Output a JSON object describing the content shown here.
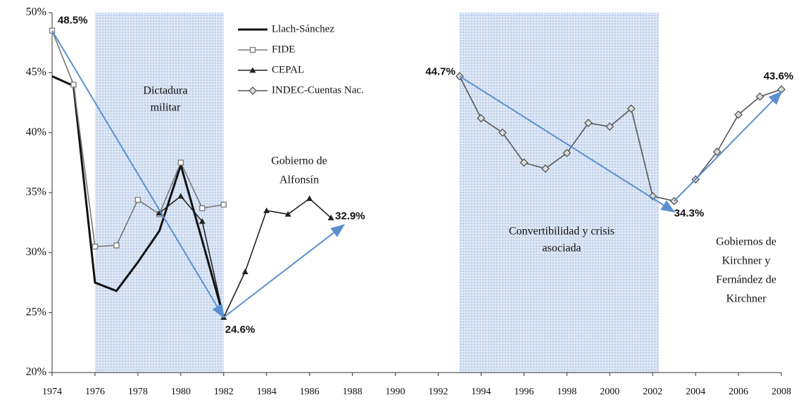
{
  "chart_data": {
    "type": "line",
    "xlim": [
      1974,
      2008
    ],
    "ylim": [
      20,
      50
    ],
    "xticks": [
      1974,
      1976,
      1978,
      1980,
      1982,
      1984,
      1986,
      1988,
      1990,
      1992,
      1994,
      1996,
      1998,
      2000,
      2002,
      2004,
      2006,
      2008
    ],
    "yticks": [
      {
        "value": 20,
        "label": "20%"
      },
      {
        "value": 25,
        "label": "25%"
      },
      {
        "value": 30,
        "label": "30%"
      },
      {
        "value": 35,
        "label": "35%"
      },
      {
        "value": 40,
        "label": "40%"
      },
      {
        "value": 45,
        "label": "45%"
      },
      {
        "value": 50,
        "label": "50%"
      }
    ],
    "series": [
      {
        "name": "Llach-Sánchez",
        "color": "#111111",
        "marker": "none",
        "x": [
          1974,
          1975,
          1976,
          1977,
          1978,
          1979,
          1980,
          1981,
          1982
        ],
        "values": [
          44.7,
          43.9,
          27.5,
          26.8,
          29.2,
          31.8,
          37.3,
          31.0,
          24.6
        ]
      },
      {
        "name": "FIDE",
        "color": "#777777",
        "marker": "square",
        "x": [
          1974,
          1975,
          1976,
          1977,
          1978,
          1979,
          1980,
          1981,
          1982
        ],
        "values": [
          48.5,
          44.0,
          30.5,
          30.6,
          34.4,
          33.2,
          37.5,
          33.7,
          34.0
        ]
      },
      {
        "name": "CEPAL",
        "color": "#222222",
        "marker": "triangle",
        "x": [
          1979,
          1980,
          1981,
          1982,
          1983,
          1984,
          1985,
          1986,
          1987
        ],
        "values": [
          33.3,
          34.7,
          32.6,
          24.6,
          28.4,
          33.5,
          33.2,
          34.5,
          32.9
        ]
      },
      {
        "name": "INDEC-Cuentas Nac.",
        "color": "#555555",
        "marker": "diamond",
        "x": [
          1993,
          1994,
          1995,
          1996,
          1997,
          1998,
          1999,
          2000,
          2001,
          2002,
          2003,
          2004,
          2005,
          2006,
          2007,
          2008
        ],
        "values": [
          44.7,
          41.2,
          40.0,
          37.5,
          37.0,
          38.3,
          40.8,
          40.5,
          42.0,
          34.7,
          34.3,
          36.1,
          38.4,
          41.5,
          43.0,
          43.6
        ]
      }
    ],
    "shaded_ranges": [
      {
        "from": 1976,
        "to": 1982,
        "lines": [
          "Dictadura",
          "militar"
        ]
      },
      {
        "from": 1993,
        "to": 2002.3,
        "lines": [
          "Convertibilidad y crisis",
          "asociada"
        ]
      }
    ],
    "period_labels": [
      {
        "lines": [
          "Gobierno de",
          "Alfonsín"
        ]
      },
      {
        "lines": [
          "Gobiernos de",
          "Kirchner y",
          "Fernández de",
          "Kirchner"
        ]
      }
    ],
    "annotations": [
      {
        "x": 1974,
        "y": 48.5,
        "label": "48.5%"
      },
      {
        "x": 1982,
        "y": 24.6,
        "label": "24.6%"
      },
      {
        "x": 1987,
        "y": 32.9,
        "label": "32.9%"
      },
      {
        "x": 1993,
        "y": 44.7,
        "label": "44.7%"
      },
      {
        "x": 2003,
        "y": 34.3,
        "label": "34.3%"
      },
      {
        "x": 2008,
        "y": 43.6,
        "label": "43.6%"
      }
    ],
    "arrows": [
      {
        "from": [
          1974,
          48.5
        ],
        "to": [
          1982,
          24.6
        ]
      },
      {
        "from": [
          1982,
          24.6
        ],
        "to": [
          1987.6,
          32.3
        ]
      },
      {
        "from": [
          1993,
          44.7
        ],
        "to": [
          2003,
          33.4
        ]
      },
      {
        "from": [
          2003,
          34.3
        ],
        "to": [
          2008,
          43.4
        ]
      }
    ],
    "arrow_color": "#5b8fd0",
    "shade_color": "#c9d9ee"
  }
}
